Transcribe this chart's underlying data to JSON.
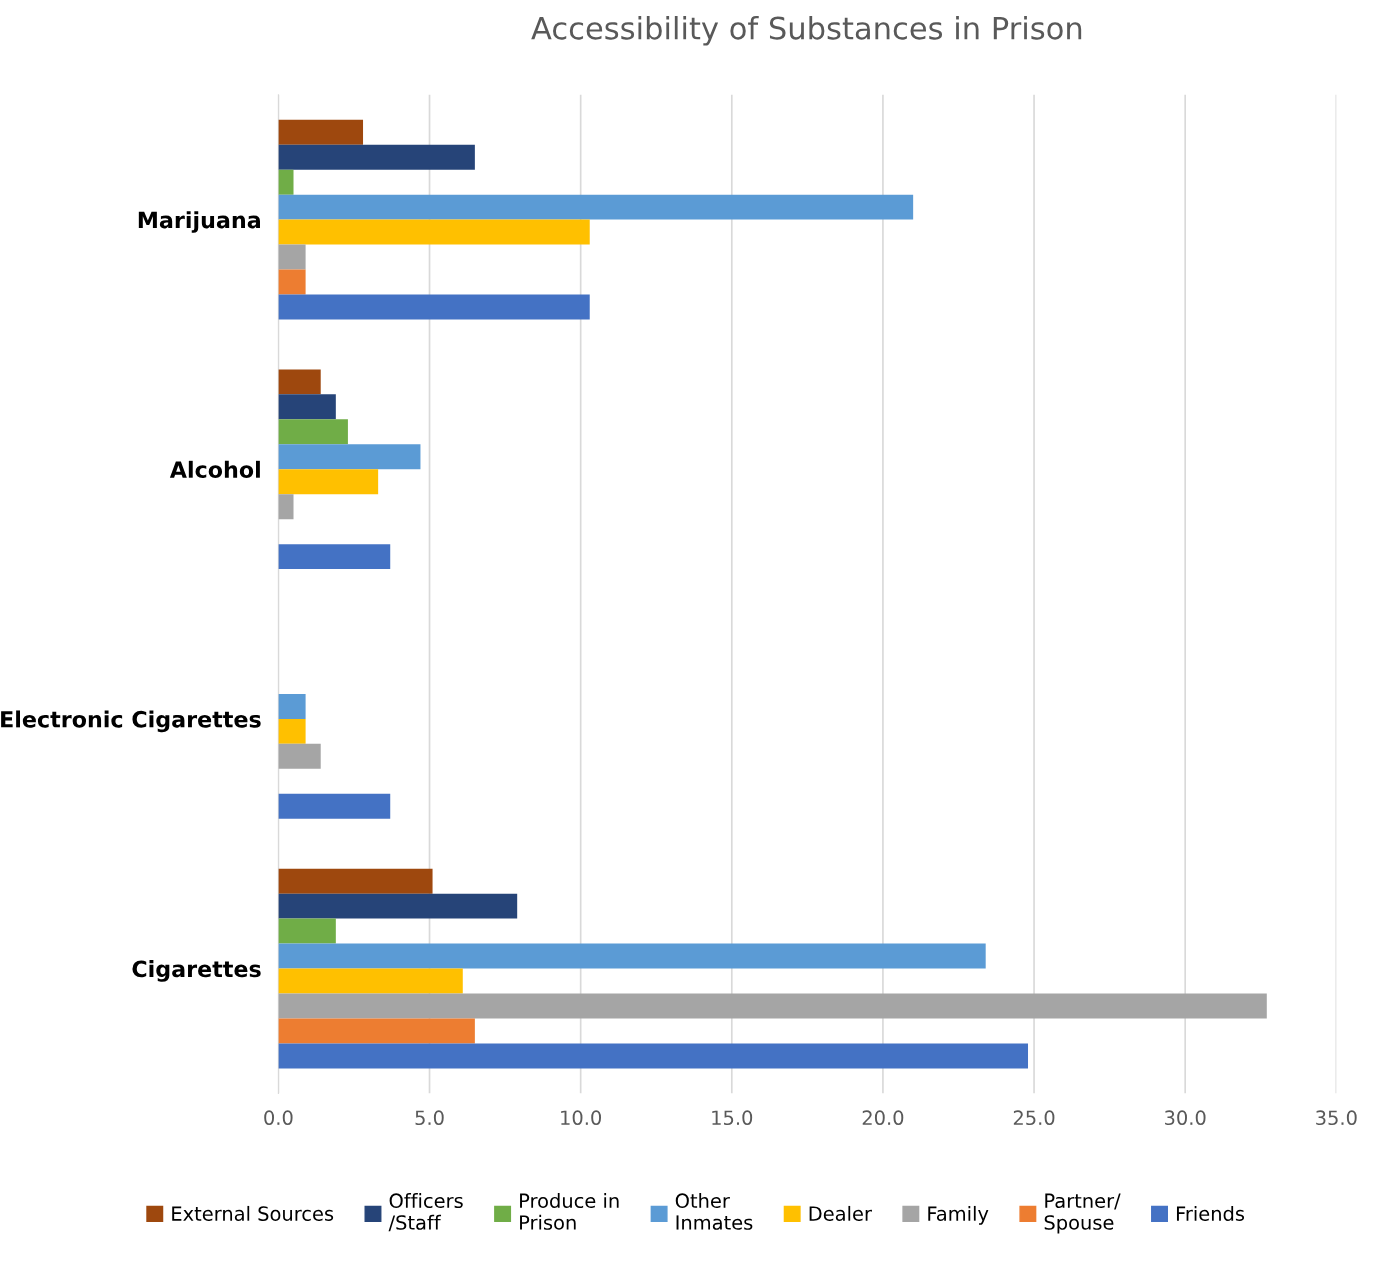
{
  "chart_data": {
    "type": "bar",
    "orientation": "horizontal",
    "title": "Accessibility of Substances in Prison",
    "categories": [
      "Marijuana",
      "Alcohol",
      "Electronic Cigarettes",
      "Cigarettes"
    ],
    "series": [
      {
        "name": "External Sources",
        "color": "#9e480e",
        "values": [
          2.8,
          1.4,
          0,
          5.1
        ]
      },
      {
        "name": "Officers\n/Staff",
        "color": "#264478",
        "values": [
          6.5,
          1.9,
          0,
          7.9
        ]
      },
      {
        "name": "Produce in\nPrison",
        "color": "#70ad47",
        "values": [
          0.5,
          2.3,
          0,
          1.9
        ]
      },
      {
        "name": "Other\nInmates",
        "color": "#5b9bd5",
        "values": [
          21.0,
          4.7,
          0.9,
          23.4
        ]
      },
      {
        "name": "Dealer",
        "color": "#ffc000",
        "values": [
          10.3,
          3.3,
          0.9,
          6.1
        ]
      },
      {
        "name": "Family",
        "color": "#a5a5a5",
        "values": [
          0.9,
          0.5,
          1.4,
          32.7
        ]
      },
      {
        "name": "Partner/\nSpouse",
        "color": "#ed7d31",
        "values": [
          0.9,
          0,
          0,
          6.5
        ]
      },
      {
        "name": "Friends",
        "color": "#4472c4",
        "values": [
          10.3,
          3.7,
          3.7,
          24.8
        ]
      }
    ],
    "xlim": [
      0,
      35
    ],
    "xticks": [
      {
        "value": 0,
        "label": "0.0"
      },
      {
        "value": 5,
        "label": "5.0"
      },
      {
        "value": 10,
        "label": "10.0"
      },
      {
        "value": 15,
        "label": "15.0"
      },
      {
        "value": 20,
        "label": "20.0"
      },
      {
        "value": 25,
        "label": "25.0"
      },
      {
        "value": 30,
        "label": "30.0"
      },
      {
        "value": 35,
        "label": "35.0"
      }
    ],
    "grid": "x",
    "legend": "bottom"
  }
}
